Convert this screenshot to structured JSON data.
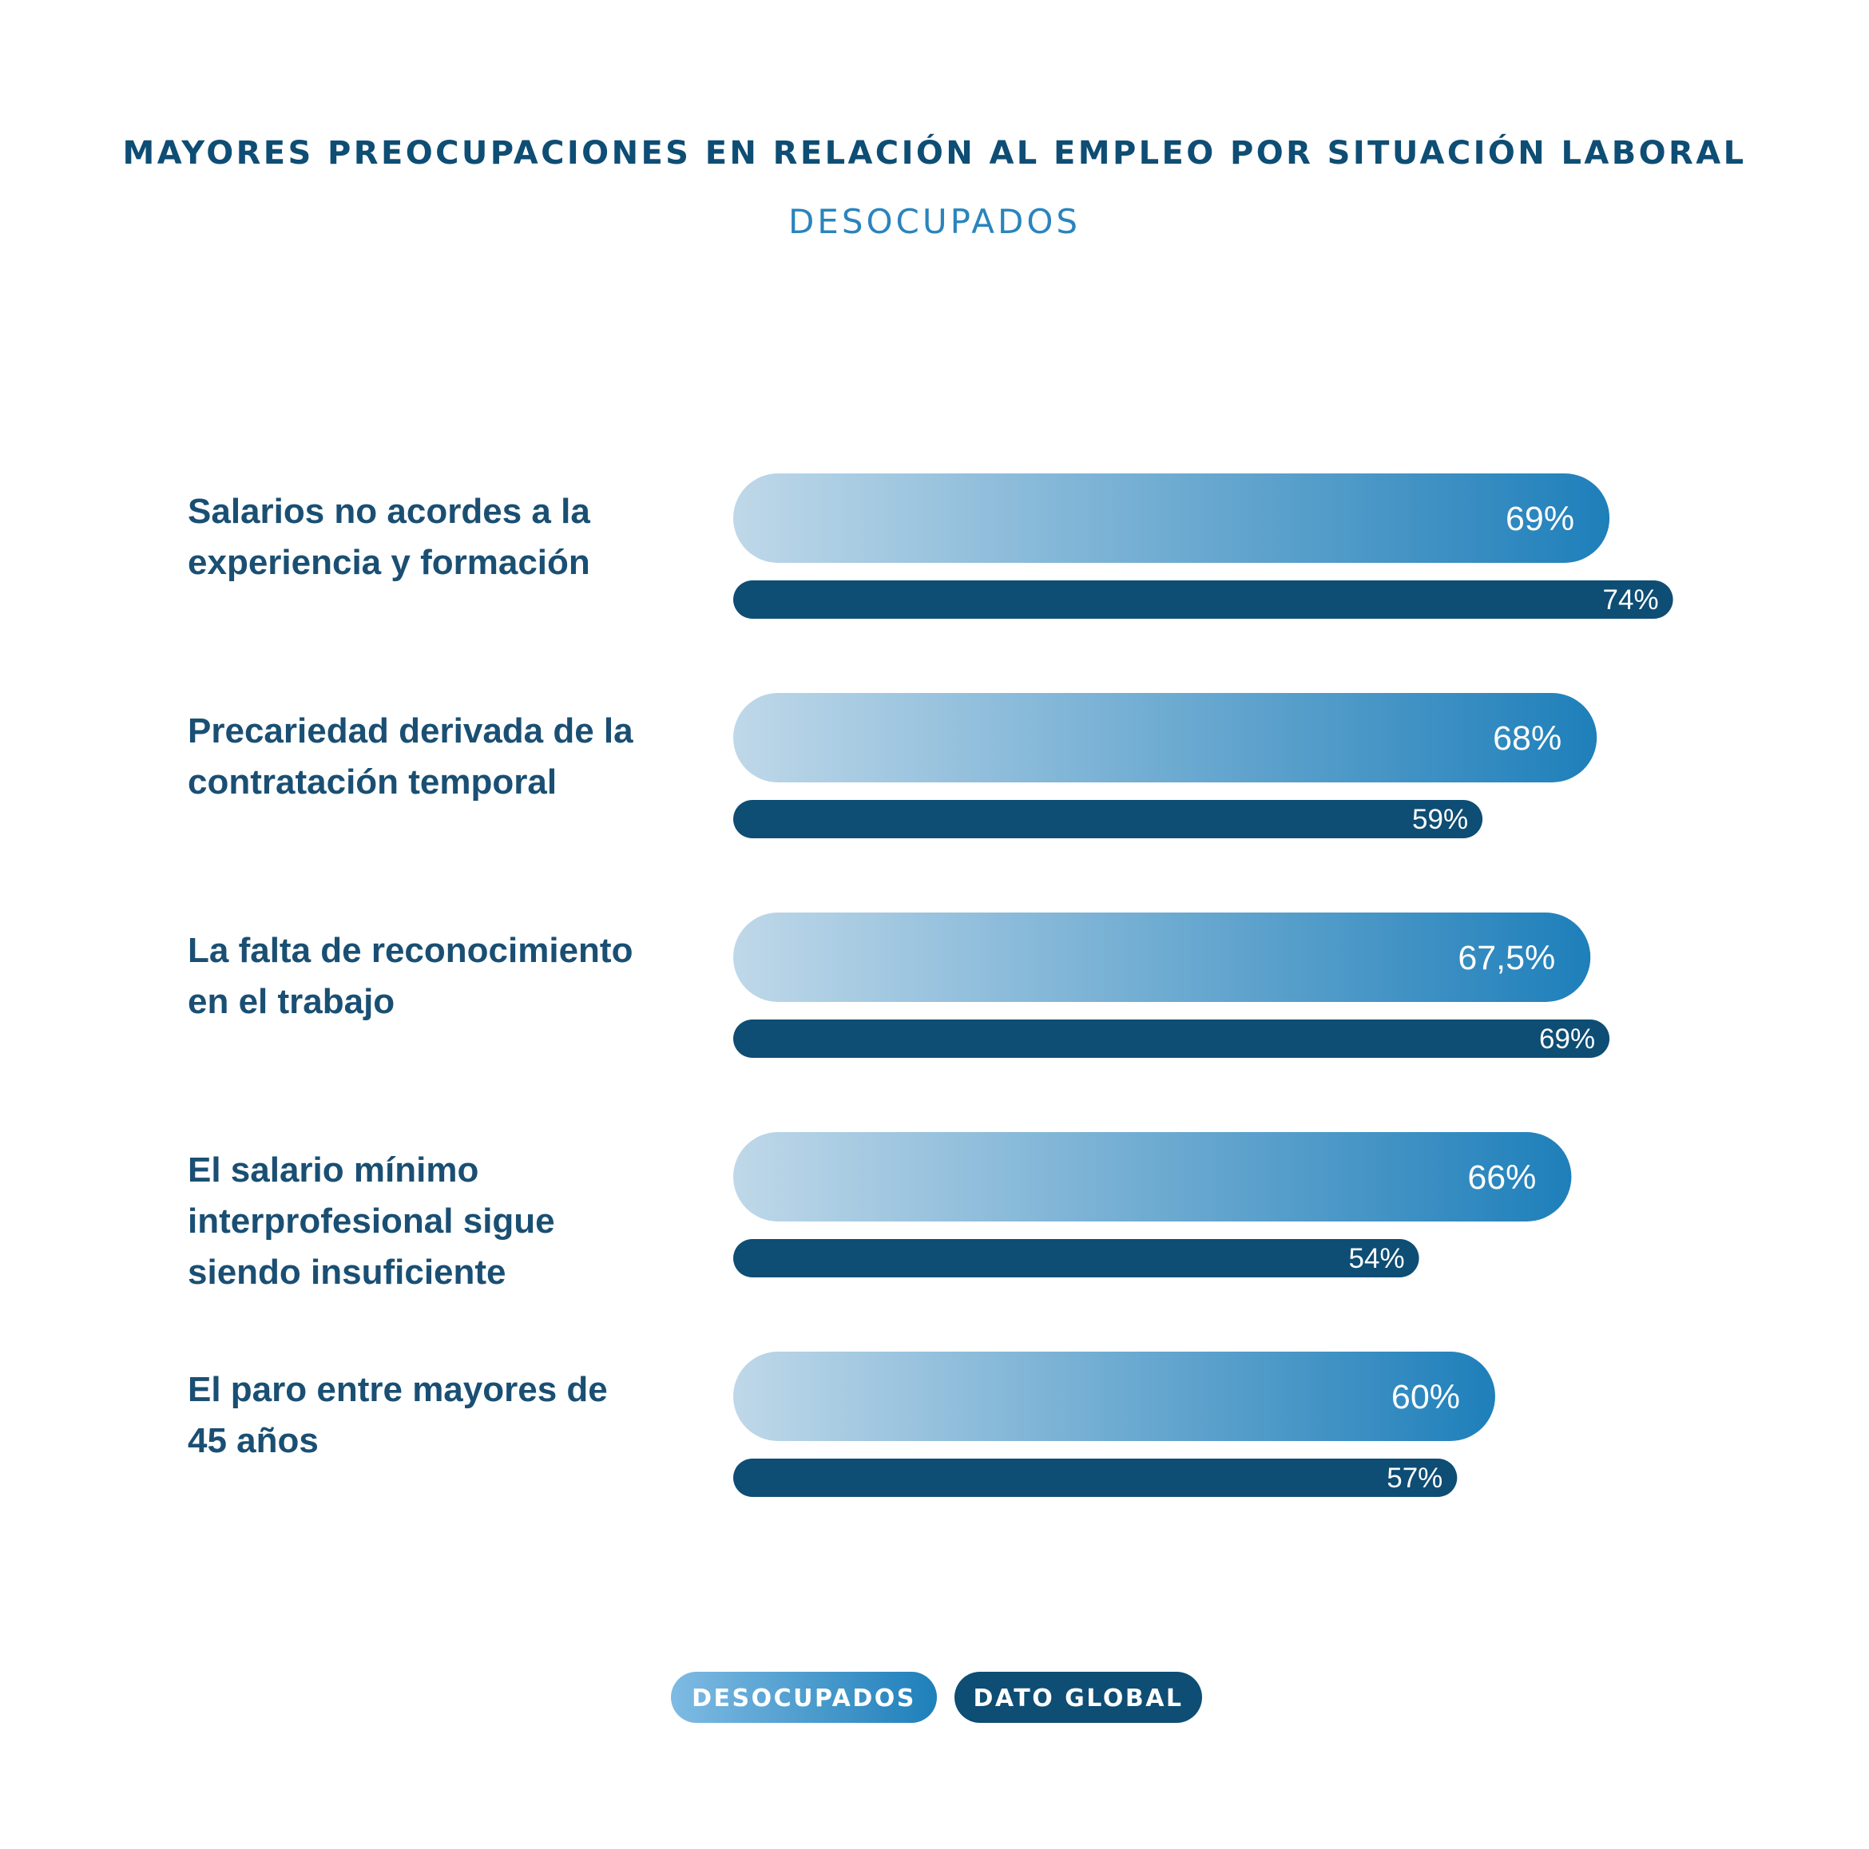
{
  "chart_data": {
    "type": "bar",
    "orientation": "horizontal",
    "title": "MAYORES PREOCUPACIONES EN RELACIÓN AL EMPLEO POR SITUACIÓN LABORAL",
    "subtitle": "DESOCUPADOS",
    "categories": [
      "Salarios no acordes a la experiencia y formación",
      "Precariedad derivada de la contratación temporal",
      "La falta de reconocimiento en el trabajo",
      "El salario mínimo interprofesional sigue siendo insuficiente",
      "El paro entre mayores de 45 años"
    ],
    "category_lines": [
      [
        "Salarios no acordes a la",
        "experiencia y formación"
      ],
      [
        "Precariedad derivada de la",
        "contratación temporal"
      ],
      [
        "La falta de reconocimiento",
        "en el trabajo"
      ],
      [
        "El salario mínimo",
        "interprofesional sigue",
        "siendo insuficiente"
      ],
      [
        "El paro entre mayores de",
        "45 años"
      ]
    ],
    "series": [
      {
        "name": "DESOCUPADOS",
        "values": [
          69,
          68,
          67.5,
          66,
          60
        ],
        "labels": [
          "69%",
          "68%",
          "67,5%",
          "66%",
          "60%"
        ],
        "color_start": "#bfd8e9",
        "color_end": "#1e7fba"
      },
      {
        "name": "DATO GLOBAL",
        "values": [
          74,
          59,
          69,
          54,
          57
        ],
        "labels": [
          "74%",
          "59%",
          "69%",
          "54%",
          "57%"
        ],
        "color": "#0e4d74"
      }
    ],
    "unit": "%",
    "grid": false,
    "legend_position": "bottom-center"
  }
}
